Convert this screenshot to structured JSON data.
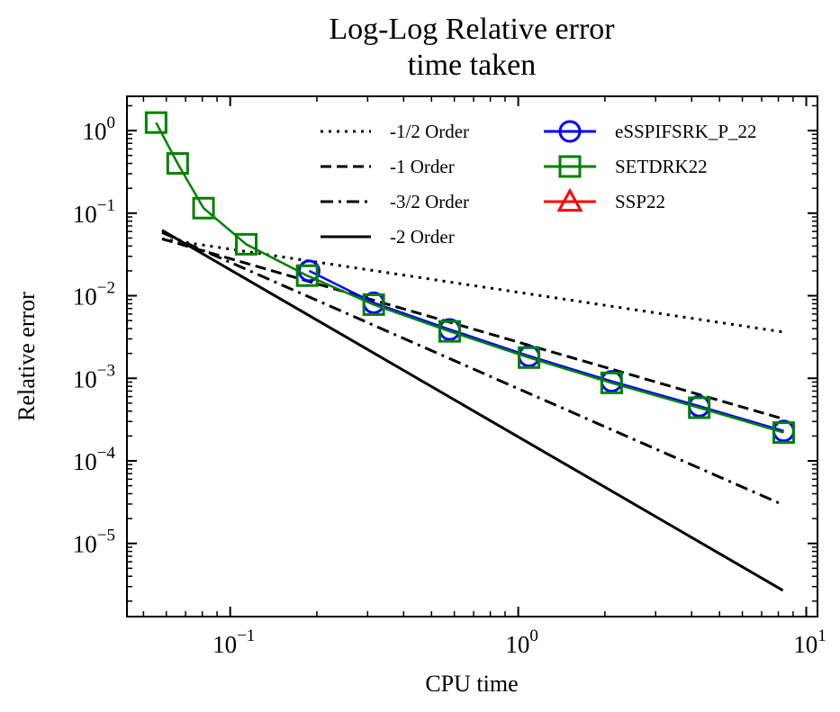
{
  "chart_data": {
    "type": "line",
    "title_lines": [
      "Log-Log Relative error",
      "time taken"
    ],
    "xlabel": "CPU time",
    "ylabel": "Relative error",
    "xscale": "log",
    "yscale": "log",
    "xlim": [
      0.0438,
      10.94
    ],
    "ylim": [
      1.3e-06,
      2.6
    ],
    "x_ticks": [
      {
        "value": 0.1,
        "base": "10",
        "exp": "−1"
      },
      {
        "value": 1,
        "base": "10",
        "exp": "0"
      },
      {
        "value": 10,
        "base": "10",
        "exp": "1"
      }
    ],
    "y_ticks": [
      {
        "value": 1,
        "base": "10",
        "exp": "0"
      },
      {
        "value": 0.1,
        "base": "10",
        "exp": "−1"
      },
      {
        "value": 0.01,
        "base": "10",
        "exp": "−2"
      },
      {
        "value": 0.001,
        "base": "10",
        "exp": "−3"
      },
      {
        "value": 0.0001,
        "base": "10",
        "exp": "−4"
      },
      {
        "value": 1e-05,
        "base": "10",
        "exp": "−5"
      }
    ],
    "grid": false,
    "legend_position": "top-right",
    "reference_lines": [
      {
        "name": "-1/2 Order",
        "style": "dotted",
        "color": "#000000",
        "x": [
          0.058,
          8.3
        ],
        "y": [
          0.0488,
          0.00364
        ]
      },
      {
        "name": "-1 Order",
        "style": "dashed",
        "color": "#000000",
        "x": [
          0.058,
          8.3
        ],
        "y": [
          0.0488,
          0.000323
        ]
      },
      {
        "name": "-3/2 Order",
        "style": "dashdot",
        "color": "#000000",
        "x": [
          0.058,
          8.3
        ],
        "y": [
          0.0585,
          2.94e-05
        ]
      },
      {
        "name": "-2 Order",
        "style": "solid",
        "color": "#000000",
        "x": [
          0.058,
          8.3
        ],
        "y": [
          0.062,
          2.7e-06
        ]
      }
    ],
    "series": [
      {
        "name": "eSSPIFSRK_P_22",
        "marker": "circle",
        "color": "#0000ff",
        "x": [
          0.188,
          0.315,
          0.578,
          1.09,
          2.11,
          4.25,
          8.35
        ],
        "y": [
          0.02,
          0.0082,
          0.0039,
          0.00186,
          0.00092,
          0.00046,
          0.00023
        ]
      },
      {
        "name": "SETDRK22",
        "marker": "square",
        "color": "#008000",
        "x": [
          0.0553,
          0.0657,
          0.0808,
          0.1137,
          0.185,
          0.315,
          0.578,
          1.09,
          2.11,
          4.25,
          8.35
        ],
        "y": [
          1.25,
          0.4,
          0.115,
          0.042,
          0.0175,
          0.0078,
          0.0037,
          0.00178,
          0.00088,
          0.00044,
          0.00022
        ]
      },
      {
        "name": "SSP22",
        "marker": "triangle",
        "color": "#ff0000",
        "x": [],
        "y": []
      }
    ]
  }
}
